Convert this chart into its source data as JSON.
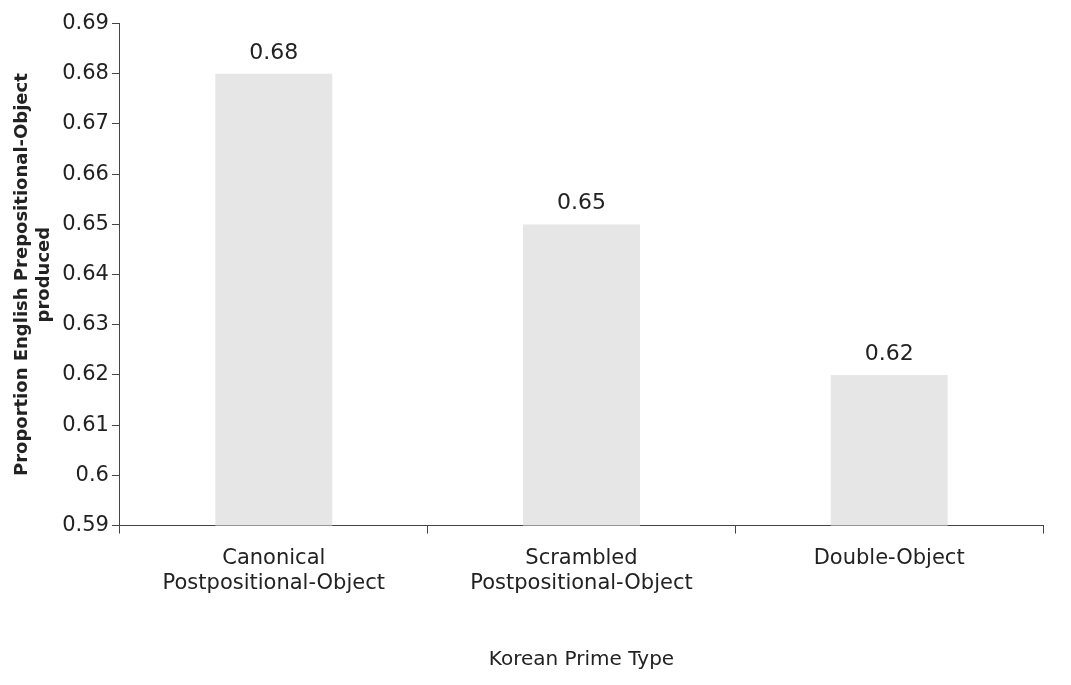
{
  "chart_data": {
    "type": "bar",
    "categories": [
      "Canonical\nPostpositional-Object",
      "Scrambled\nPostpositional-Object",
      "Double-Object"
    ],
    "values": [
      0.68,
      0.65,
      0.62
    ],
    "color": "#e6e6e6",
    "xlabel": "Korean Prime Type",
    "ylabel": "Proportion English Prepositional-Object\nproduced",
    "ylim": [
      0.59,
      0.69
    ],
    "yticks": [
      0.59,
      0.6,
      0.61,
      0.62,
      0.63,
      0.64,
      0.65,
      0.66,
      0.67,
      0.68,
      0.69
    ],
    "grid": false,
    "legend": false,
    "data_labels": true
  }
}
